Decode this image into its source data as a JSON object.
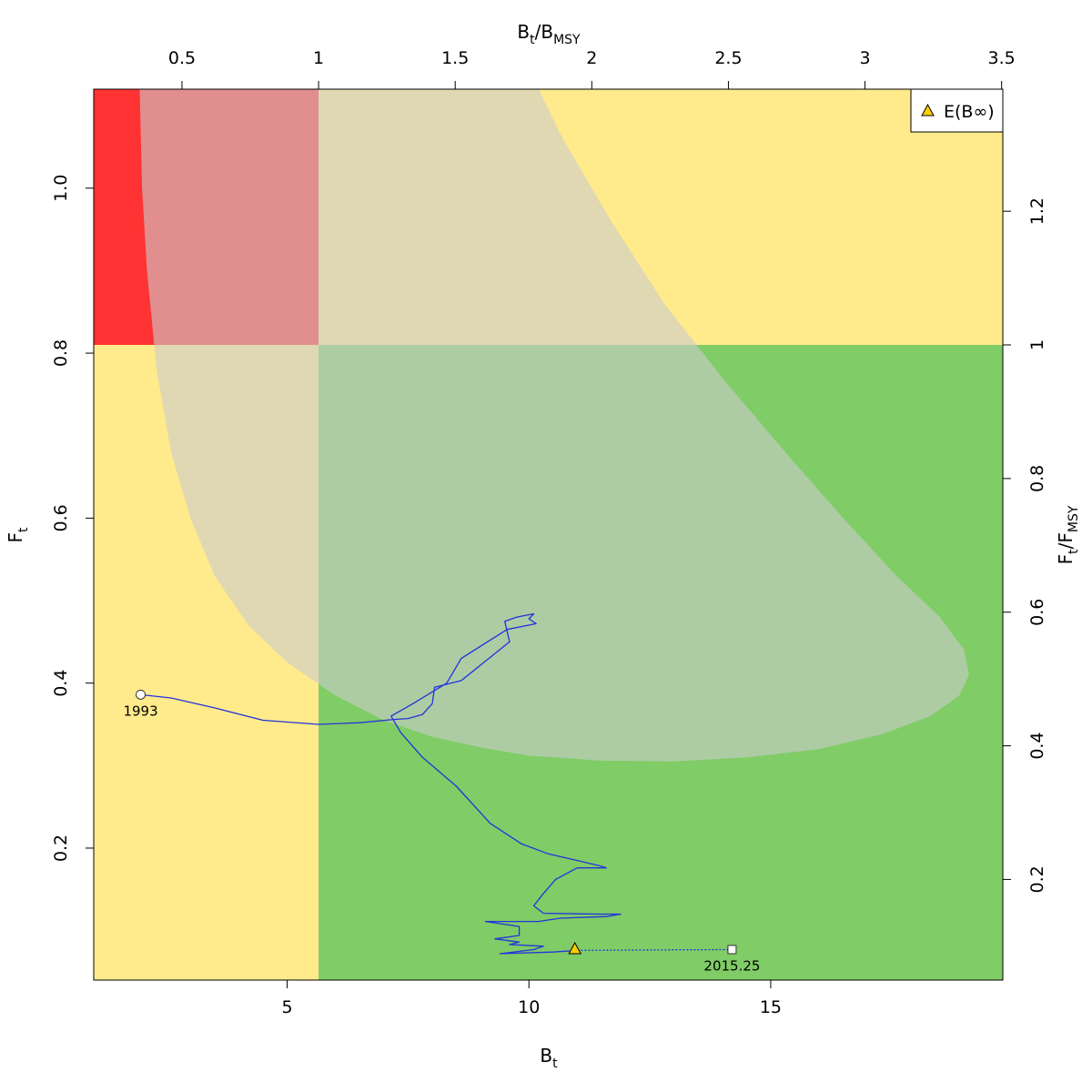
{
  "chart_data": {
    "type": "line",
    "xlabel": {
      "main": "B",
      "sub": "t"
    },
    "ylabel": {
      "main": "F",
      "sub": "t"
    },
    "top_axis_label": {
      "main": "B",
      "sub": "t",
      "den_main": "B",
      "den_sub": "MSY"
    },
    "right_axis_label": {
      "main": "F",
      "sub": "t",
      "den_main": "F",
      "den_sub": "MSY"
    },
    "xlim": [
      1.0,
      19.8
    ],
    "ylim": [
      0.04,
      1.12
    ],
    "x_ticks": [
      5,
      10,
      15
    ],
    "y_ticks": [
      0.2,
      0.4,
      0.6,
      0.8,
      1.0
    ],
    "y_tick_labels": [
      "0.2",
      "0.4",
      "0.6",
      "0.8",
      "1.0"
    ],
    "top_ticks": [
      0.5,
      1,
      1.5,
      2,
      2.5,
      3,
      3.5
    ],
    "top_tick_labels": [
      "0.5",
      "1",
      "1.5",
      "2",
      "2.5",
      "3",
      "3.5"
    ],
    "right_ticks": [
      0.2,
      0.4,
      0.6,
      0.8,
      1,
      1.2
    ],
    "right_tick_labels": [
      "0.2",
      "0.4",
      "0.6",
      "0.8",
      "1",
      "1.2"
    ],
    "bmsy": 5.65,
    "fmsy": 0.81,
    "colors": {
      "red": "#ff3333",
      "yellow": "#ffeb8c",
      "green": "#80cc66",
      "ellipse": "#cccccc",
      "ellipse_opacity": 0.6,
      "trajectory": "#2233dd"
    },
    "zones": [
      {
        "name": "overfished-overfishing",
        "color": "red"
      },
      {
        "name": "overfishing-not-overfished",
        "color": "yellow"
      },
      {
        "name": "overfished-no-overfishing",
        "color": "yellow"
      },
      {
        "name": "healthy",
        "color": "green"
      }
    ],
    "ellipse_outline": [
      [
        1.95,
        1.12
      ],
      [
        2.0,
        1.0
      ],
      [
        2.1,
        0.9
      ],
      [
        2.3,
        0.78
      ],
      [
        2.6,
        0.68
      ],
      [
        3.0,
        0.6
      ],
      [
        3.5,
        0.53
      ],
      [
        4.2,
        0.47
      ],
      [
        5.0,
        0.425
      ],
      [
        6.0,
        0.385
      ],
      [
        7.0,
        0.355
      ],
      [
        8.0,
        0.335
      ],
      [
        9.0,
        0.322
      ],
      [
        10.0,
        0.312
      ],
      [
        11.5,
        0.306
      ],
      [
        13.0,
        0.305
      ],
      [
        14.5,
        0.31
      ],
      [
        16.0,
        0.32
      ],
      [
        17.3,
        0.338
      ],
      [
        18.3,
        0.36
      ],
      [
        18.9,
        0.385
      ],
      [
        19.1,
        0.41
      ],
      [
        19.0,
        0.44
      ],
      [
        18.5,
        0.48
      ],
      [
        17.6,
        0.53
      ],
      [
        16.5,
        0.6
      ],
      [
        15.3,
        0.68
      ],
      [
        14.0,
        0.77
      ],
      [
        12.8,
        0.86
      ],
      [
        11.7,
        0.96
      ],
      [
        10.7,
        1.06
      ],
      [
        10.2,
        1.12
      ]
    ],
    "series": [
      {
        "name": "",
        "x": [
          1.97,
          2.6,
          3.5,
          4.5,
          5.65,
          6.5,
          7.2,
          7.5,
          7.8,
          8.0,
          8.05,
          8.6,
          9.6,
          9.5,
          9.75,
          10.1,
          10.0,
          10.15,
          9.55,
          8.6,
          8.3,
          7.6,
          7.15,
          7.35,
          7.8,
          8.5,
          9.2,
          9.85,
          10.4,
          11.0,
          11.5,
          11.6,
          11.0,
          10.55,
          10.3,
          10.1,
          10.3,
          11.4,
          11.9,
          11.6,
          10.65,
          10.2,
          9.1,
          9.8,
          9.8,
          9.3,
          9.8,
          9.6,
          10.3,
          10.1,
          9.4,
          10.5,
          11.0
        ],
        "y": [
          0.386,
          0.382,
          0.37,
          0.355,
          0.35,
          0.352,
          0.356,
          0.357,
          0.362,
          0.375,
          0.395,
          0.403,
          0.45,
          0.475,
          0.48,
          0.484,
          0.478,
          0.472,
          0.465,
          0.43,
          0.4,
          0.375,
          0.36,
          0.34,
          0.31,
          0.275,
          0.23,
          0.205,
          0.193,
          0.185,
          0.178,
          0.176,
          0.176,
          0.162,
          0.145,
          0.13,
          0.121,
          0.12,
          0.12,
          0.117,
          0.115,
          0.111,
          0.111,
          0.105,
          0.094,
          0.09,
          0.086,
          0.083,
          0.081,
          0.077,
          0.072,
          0.074,
          0.076
        ]
      }
    ],
    "projection": {
      "x": [
        11.0,
        14.2
      ],
      "y": [
        0.076,
        0.077
      ]
    },
    "start_point": {
      "x": 1.97,
      "y": 0.386,
      "label": "1993"
    },
    "end_point": {
      "x": 14.2,
      "y": 0.077,
      "label": "2015.25"
    },
    "expected_point": {
      "x": 10.95,
      "y": 0.078,
      "color": "#ffcc00"
    },
    "legend": {
      "label": "E(B∞)",
      "placement": "top-right"
    }
  }
}
